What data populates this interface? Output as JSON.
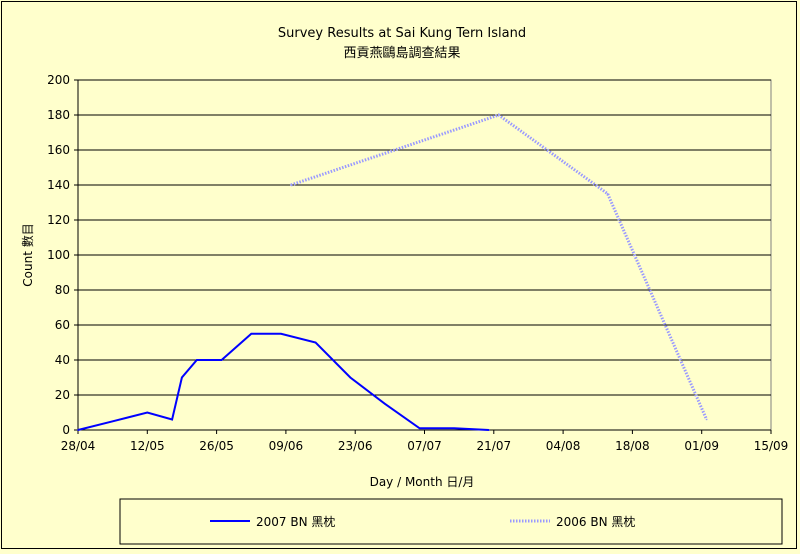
{
  "chart_data": {
    "type": "line",
    "title": "Survey Results at Sai Kung Tern Island",
    "subtitle": "西貢燕鷗島調查結果",
    "xlabel": "Day / Month  日/月",
    "ylabel": "Count 數目",
    "x_tick_labels": [
      "28/04",
      "12/05",
      "26/05",
      "09/06",
      "23/06",
      "07/07",
      "21/07",
      "04/08",
      "18/08",
      "01/09",
      "15/09"
    ],
    "xlim": [
      "28/04",
      "15/09"
    ],
    "ylim": [
      0,
      200
    ],
    "y_ticks": [
      0,
      20,
      40,
      60,
      80,
      100,
      120,
      140,
      160,
      180,
      200
    ],
    "grid": "horizontal",
    "legend_position": "bottom",
    "series": [
      {
        "name": "2007 BN 黑枕",
        "color": "#0000ff",
        "style": "solid",
        "x": [
          "28/04",
          "05/05",
          "12/05",
          "17/05",
          "19/05",
          "22/05",
          "27/05",
          "02/06",
          "08/06",
          "15/06",
          "22/06",
          "29/06",
          "06/07",
          "13/07",
          "20/07"
        ],
        "y": [
          0,
          5,
          10,
          6,
          30,
          40,
          40,
          55,
          55,
          50,
          30,
          15,
          1,
          1,
          0
        ]
      },
      {
        "name": "2006 BN 黑枕",
        "color": "#9999ff",
        "style": "dotted",
        "x": [
          "10/06",
          "22/07",
          "13/08",
          "02/09"
        ],
        "y": [
          140,
          180,
          135,
          6
        ]
      }
    ]
  }
}
